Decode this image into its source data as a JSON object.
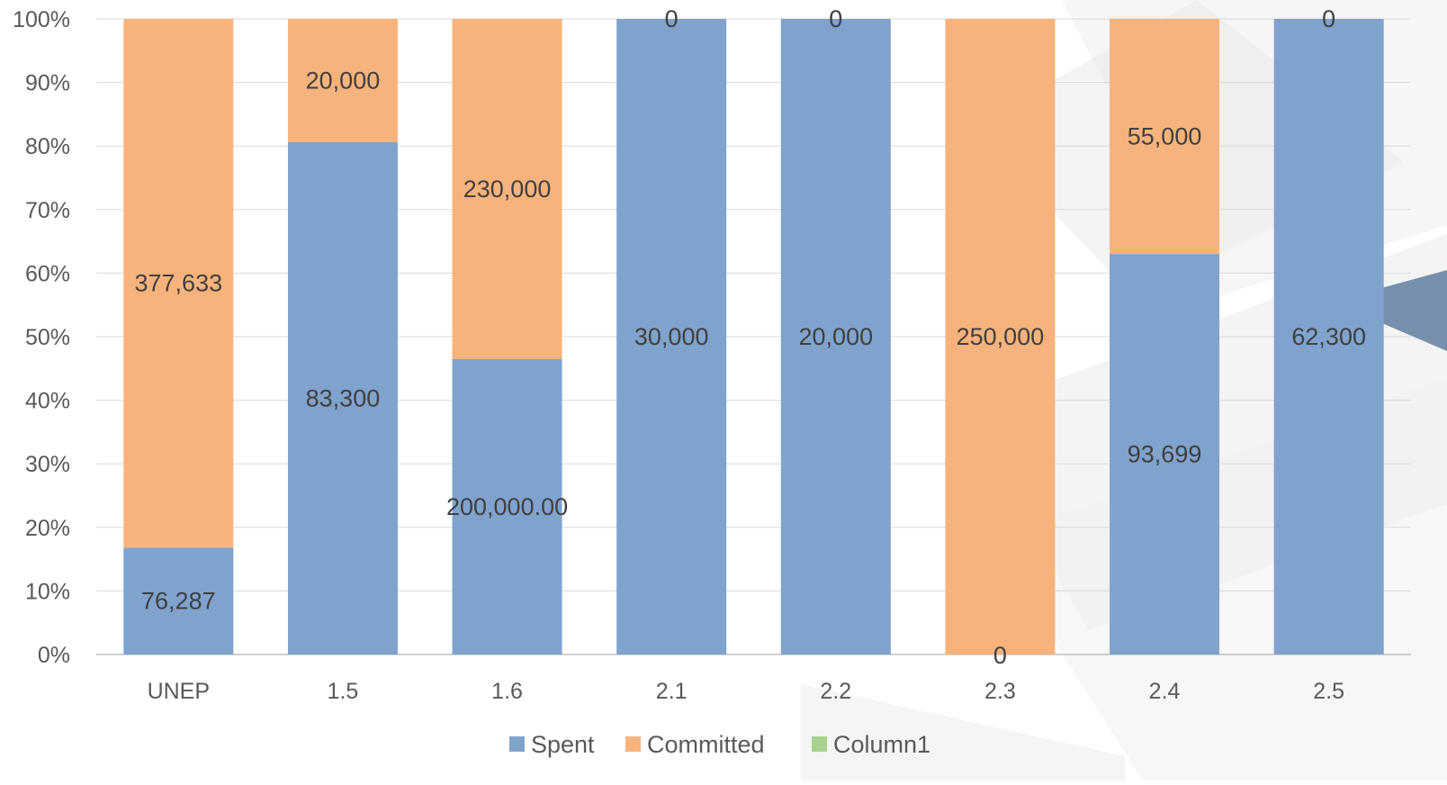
{
  "chart_data": {
    "type": "bar",
    "stacked": "percent",
    "categories": [
      "UNEP",
      "1.5",
      "1.6",
      "2.1",
      "2.2",
      "2.3",
      "2.4",
      "2.5"
    ],
    "series": [
      {
        "name": "Spent",
        "color": "#7FA3CD",
        "values": [
          76287,
          83300,
          200000,
          30000,
          20000,
          0,
          93699,
          62300
        ],
        "labels": [
          "76,287",
          "83,300",
          "200,000.00",
          "30,000",
          "20,000",
          "0",
          "93,699",
          "62,300"
        ]
      },
      {
        "name": "Committed",
        "color": "#F8B37D",
        "values": [
          377633,
          20000,
          230000,
          0,
          0,
          250000,
          55000,
          0
        ],
        "labels": [
          "377,633",
          "20,000",
          "230,000",
          "0",
          "0",
          "250,000",
          "55,000",
          "0"
        ]
      },
      {
        "name": "Column1",
        "color": "#A9D18E",
        "values": [
          0,
          0,
          0,
          0,
          0,
          0,
          0,
          0
        ],
        "labels": []
      }
    ],
    "ylim": [
      0,
      1
    ],
    "yticks": [
      "0%",
      "10%",
      "20%",
      "30%",
      "40%",
      "50%",
      "60%",
      "70%",
      "80%",
      "90%",
      "100%"
    ],
    "grid": true,
    "legend_position": "bottom",
    "title": "",
    "xlabel": "",
    "ylabel": ""
  }
}
